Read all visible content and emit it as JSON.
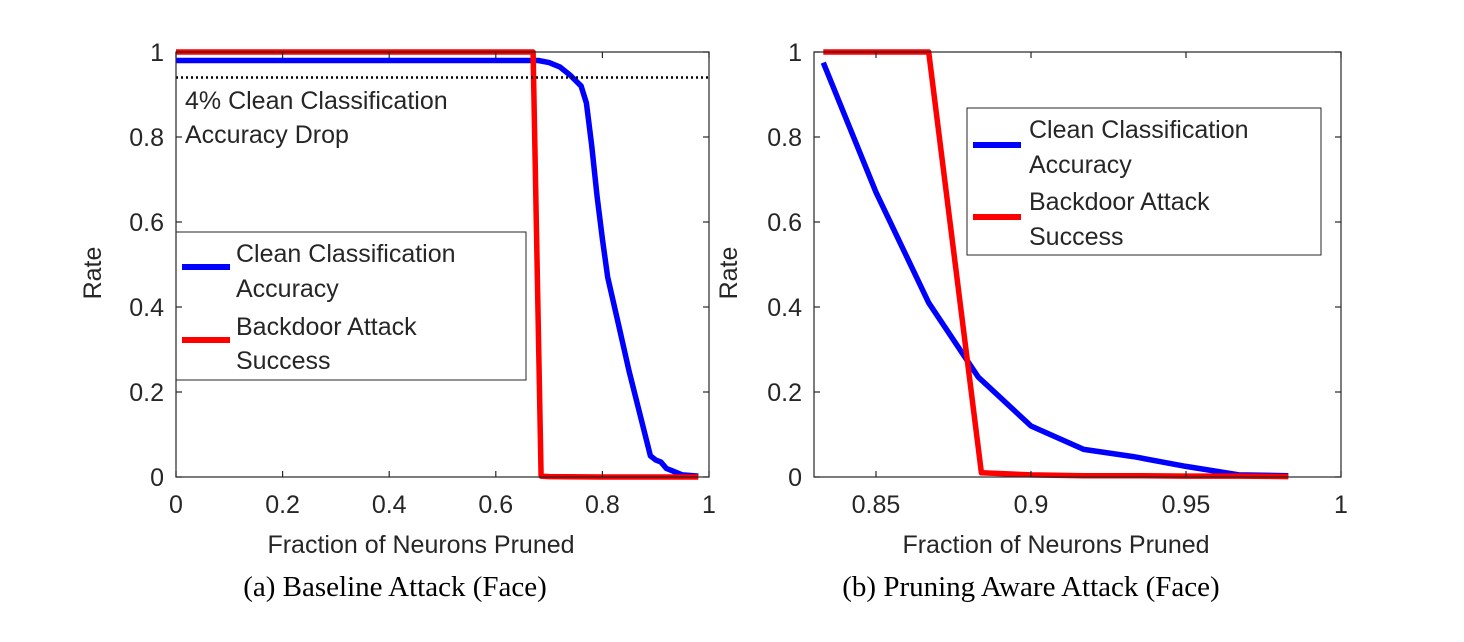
{
  "colors": {
    "accuracy": "#0000ff",
    "backdoor": "#ff0000",
    "axis": "#262626",
    "threshold": "#000000"
  },
  "chart_data": [
    {
      "type": "line",
      "caption": "(a) Baseline Attack (Face)",
      "xlabel": "Fraction of Neurons Pruned",
      "ylabel": "Rate",
      "xlim": [
        0,
        1
      ],
      "ylim": [
        0,
        1
      ],
      "xticks": [
        0,
        0.2,
        0.4,
        0.6,
        0.8,
        1
      ],
      "xtick_labels": [
        "0",
        "0.2",
        "0.4",
        "0.6",
        "0.8",
        "1"
      ],
      "yticks": [
        0,
        0.2,
        0.4,
        0.6,
        0.8,
        1
      ],
      "ytick_labels": [
        "0",
        "0.2",
        "0.4",
        "0.6",
        "0.8",
        "1"
      ],
      "grid": false,
      "legend_position": "middle-left",
      "series": [
        {
          "name_lines": [
            "Clean Classification",
            "Accuracy"
          ],
          "color": "#0000ff",
          "x": [
            0,
            0.1,
            0.2,
            0.3,
            0.4,
            0.5,
            0.6,
            0.68,
            0.7,
            0.72,
            0.74,
            0.76,
            0.77,
            0.78,
            0.79,
            0.8,
            0.81,
            0.83,
            0.85,
            0.87,
            0.89,
            0.9,
            0.91,
            0.92,
            0.93,
            0.95,
            0.98
          ],
          "y": [
            0.98,
            0.98,
            0.98,
            0.98,
            0.98,
            0.98,
            0.98,
            0.98,
            0.975,
            0.965,
            0.945,
            0.92,
            0.88,
            0.78,
            0.66,
            0.56,
            0.47,
            0.36,
            0.25,
            0.15,
            0.05,
            0.04,
            0.035,
            0.02,
            0.015,
            0.005,
            0.002
          ]
        },
        {
          "name_lines": [
            "Backdoor Attack",
            "Success"
          ],
          "color": "#ff0000",
          "x": [
            0,
            0.1,
            0.2,
            0.3,
            0.4,
            0.5,
            0.6,
            0.67,
            0.685,
            0.7,
            0.8,
            0.9,
            0.98
          ],
          "y": [
            1,
            1,
            1,
            1,
            1,
            1,
            1,
            1,
            0.002,
            0.001,
            0.0,
            0.0,
            0.0
          ]
        }
      ],
      "reference_line": {
        "y": 0.94,
        "style": "dotted",
        "annotation_lines": [
          "4% Clean Classification",
          "Accuracy Drop"
        ]
      }
    },
    {
      "type": "line",
      "caption": "(b) Pruning Aware Attack (Face)",
      "xlabel": "Fraction of Neurons Pruned",
      "ylabel": "Rate",
      "xlim": [
        0.83,
        1
      ],
      "ylim": [
        0,
        1
      ],
      "xticks": [
        0.85,
        0.9,
        0.95,
        1
      ],
      "xtick_labels": [
        "0.85",
        "0.9",
        "0.95",
        "1"
      ],
      "yticks": [
        0,
        0.2,
        0.4,
        0.6,
        0.8,
        1
      ],
      "ytick_labels": [
        "0",
        "0.2",
        "0.4",
        "0.6",
        "0.8",
        "1"
      ],
      "grid": false,
      "legend_position": "top-right",
      "series": [
        {
          "name_lines": [
            "Clean Classification",
            "Accuracy"
          ],
          "color": "#0000ff",
          "x": [
            0.833,
            0.85,
            0.867,
            0.883,
            0.9,
            0.917,
            0.933,
            0.95,
            0.967,
            0.983
          ],
          "y": [
            0.975,
            0.67,
            0.41,
            0.235,
            0.12,
            0.065,
            0.048,
            0.025,
            0.005,
            0.003
          ]
        },
        {
          "name_lines": [
            "Backdoor Attack",
            "Success"
          ],
          "color": "#ff0000",
          "x": [
            0.833,
            0.85,
            0.867,
            0.884,
            0.9,
            0.917,
            0.933,
            0.95,
            0.967,
            0.983
          ],
          "y": [
            1,
            1,
            1,
            0.01,
            0.005,
            0.003,
            0.003,
            0.002,
            0.002,
            0.001
          ]
        }
      ]
    }
  ]
}
